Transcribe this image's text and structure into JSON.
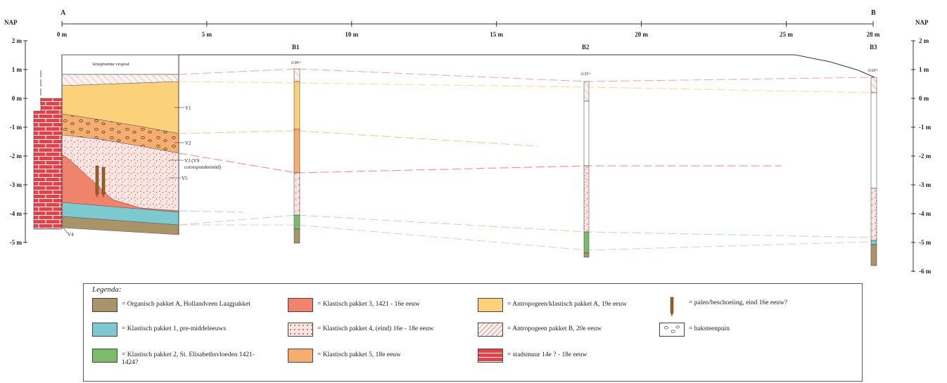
{
  "section": {
    "start_label": "A",
    "end_label": "B",
    "axis_label": "NAP",
    "x_ticks": [
      "0 m",
      "5 m",
      "10 m",
      "15 m",
      "20 m",
      "25 m",
      "28 m"
    ],
    "y_ticks_left": [
      "2 m",
      "1 m",
      "0 m",
      "-1 m",
      "-2 m",
      "-3 m",
      "-4 m",
      "-5 m"
    ],
    "y_ticks_right": [
      "2 m",
      "1 m",
      "0 m",
      "-1 m",
      "-2 m",
      "-3 m",
      "-4 m",
      "-5 m",
      "-6 m"
    ],
    "profile_title": "kruipruimte vespost",
    "markers": [
      "V1",
      "V2",
      "V3 (V9",
      "correspondeerend)",
      "V5",
      "V4"
    ],
    "boreholes": [
      {
        "name": "B1",
        "elev": "0.99+"
      },
      {
        "name": "B2",
        "elev": "0.55+"
      },
      {
        "name": "B3",
        "elev": "0.69+"
      }
    ]
  },
  "colors": {
    "organisch_a": "#a9946a",
    "klastisch_1": "#7ec9cf",
    "klastisch_2": "#7dbb6c",
    "klastisch_3": "#f0836b",
    "klastisch_4": "#fbe3e0",
    "klastisch_5": "#f7ad6e",
    "antropogeen_a": "#fbd27a",
    "antropogeen_b": "#f7d3cf",
    "stadsmuur": "#e2424a"
  },
  "legend": {
    "title": "Legenda:",
    "items": [
      "= Organisch pakket A, Hollandveen Laagpakket",
      "= Klastisch pakket 1, pre-middeleeuws",
      "= Klastisch pakket 2, St. Elisabethsvloeden 1421-1424?",
      "= Klastisch pakket 3, 1421 - 16e eeuw",
      "= Klastisch pakket 4, (eind) 16e - 18e eeuw",
      "= Klastisch pakket 5, 18e eeuw",
      "= Antropogeen/klastisch pakket A, 19e eeuw",
      "= Antropogeen pakket B, 20e eeuw",
      "= stadsmuur 14e ? - 18e eeuw",
      "= palen/beschoeiing, eind 16e eeuw?",
      "= baksteenpuin"
    ]
  }
}
